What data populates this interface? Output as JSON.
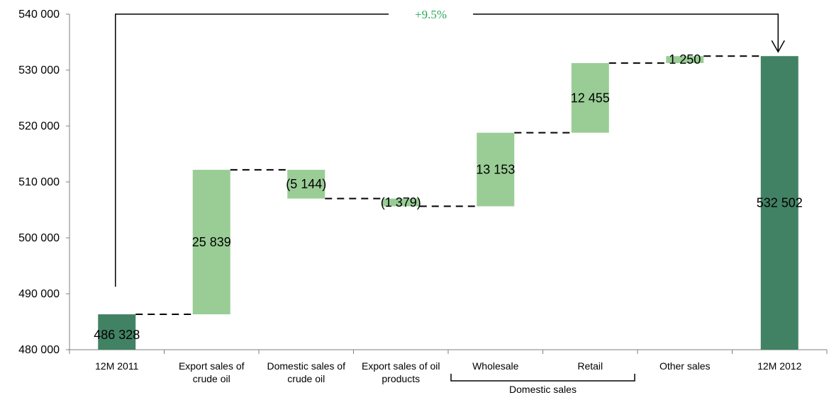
{
  "chart_data": {
    "type": "bar",
    "subtype": "waterfall",
    "title": "",
    "xlabel": "",
    "ylabel": "",
    "ylim": [
      480000,
      540000
    ],
    "yticks": [
      480000,
      490000,
      500000,
      510000,
      520000,
      530000,
      540000
    ],
    "ytick_labels": [
      "480 000",
      "490 000",
      "500 000",
      "510 000",
      "520 000",
      "530 000",
      "540 000"
    ],
    "categories": [
      "12M 2011",
      "Export sales of crude oil",
      "Domestic sales of crude oil",
      "Export sales of oil products",
      "Wholesale",
      "Retail",
      "Other sales",
      "12M 2012"
    ],
    "category_lines": [
      [
        "12M 2011"
      ],
      [
        "Export sales of",
        "crude oil"
      ],
      [
        "Domestic sales of",
        "crude oil"
      ],
      [
        "Export sales of oil",
        "products"
      ],
      [
        "Wholesale"
      ],
      [
        "Retail"
      ],
      [
        "Other sales"
      ],
      [
        "12M 2012"
      ]
    ],
    "bars": [
      {
        "kind": "total",
        "start": 480000,
        "end": 486328,
        "label": "486 328"
      },
      {
        "kind": "change",
        "start": 486328,
        "end": 512167,
        "label": "25 839"
      },
      {
        "kind": "change",
        "start": 512167,
        "end": 507023,
        "label": "(5 144)"
      },
      {
        "kind": "change",
        "start": 507023,
        "end": 505644,
        "label": "(1 379)"
      },
      {
        "kind": "change",
        "start": 505644,
        "end": 518797,
        "label": "13 153"
      },
      {
        "kind": "change",
        "start": 518797,
        "end": 531252,
        "label": "12 455"
      },
      {
        "kind": "change",
        "start": 531252,
        "end": 532502,
        "label": "1 250"
      },
      {
        "kind": "total",
        "start": 480000,
        "end": 532502,
        "label": "532 502"
      }
    ],
    "group": {
      "label": "Domestic sales",
      "from": 4,
      "to": 5
    },
    "annotation": {
      "text": "+9.5%",
      "from": 0,
      "to": 7
    },
    "colors": {
      "total": "#428264",
      "change": "#9acd96",
      "annotation": "#2aa85a",
      "axis": "#7f7f7f",
      "connector": "#000000"
    },
    "grid": false,
    "legend": "none"
  }
}
